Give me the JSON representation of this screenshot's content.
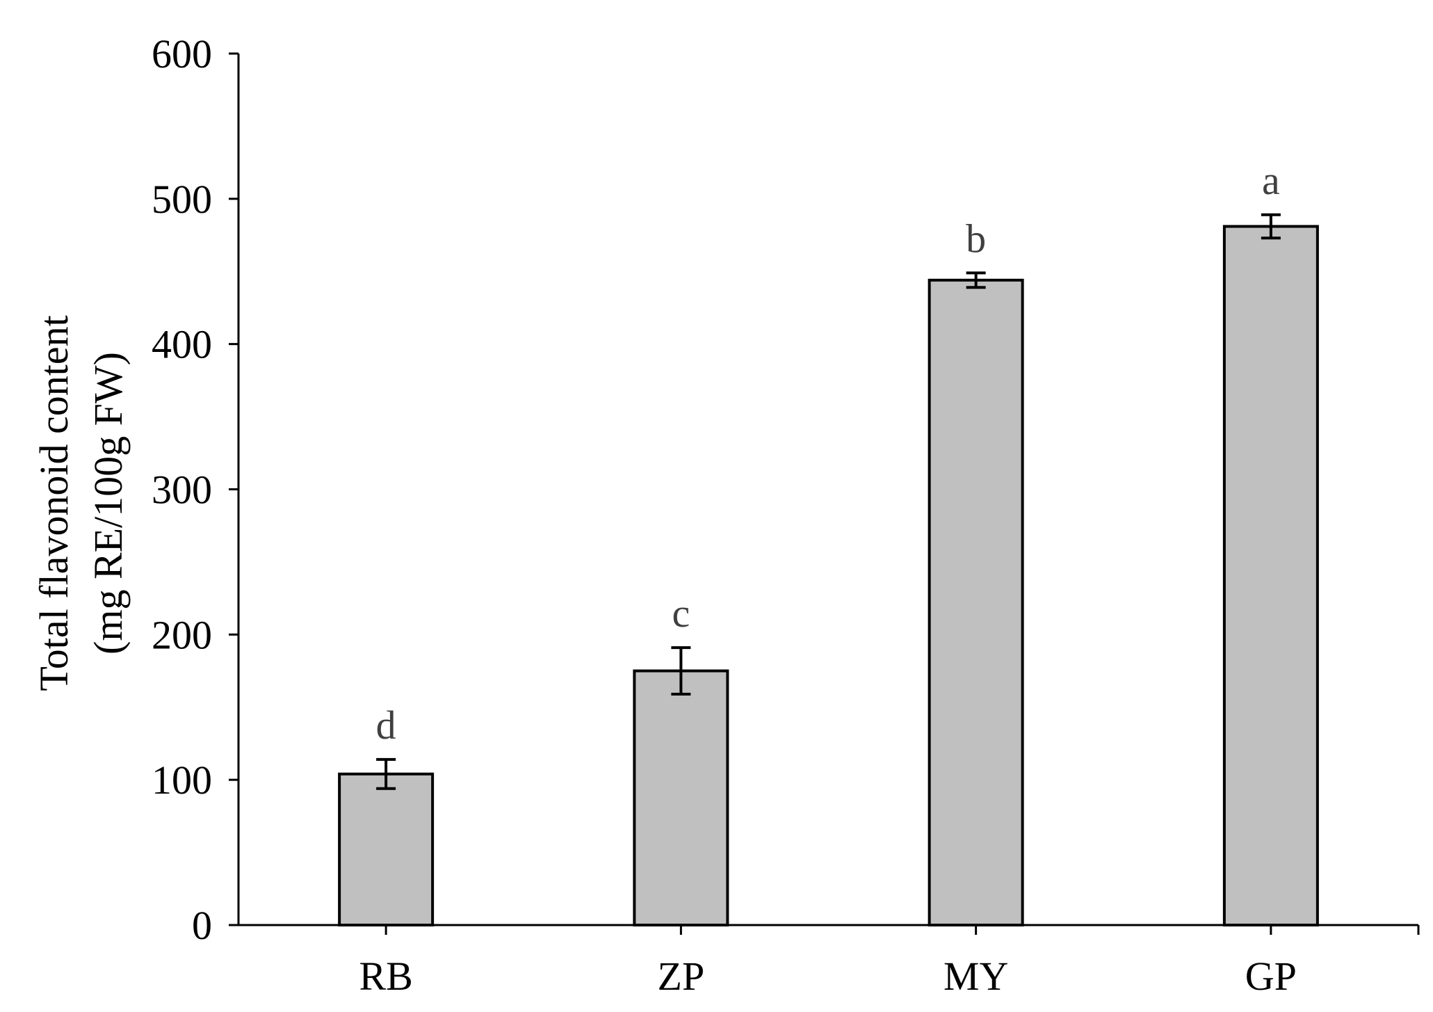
{
  "chart_data": {
    "type": "bar",
    "categories": [
      "RB",
      "ZP",
      "MY",
      "GP"
    ],
    "values": [
      104,
      175,
      444,
      481
    ],
    "errors": [
      10,
      16,
      5,
      8
    ],
    "significance_labels": [
      "d",
      "c",
      "b",
      "a"
    ],
    "ylabel_lines": [
      "Total flavonoid content",
      "(mg RE/100g FW)"
    ],
    "xlabel": "",
    "ylim": [
      0,
      600
    ],
    "yticks": [
      0,
      100,
      200,
      300,
      400,
      500,
      600
    ],
    "grid": false,
    "legend": "none",
    "colors": {
      "bar_fill": "#c0c0c0",
      "bar_edge": "#000000",
      "sig_text": "#404040"
    }
  }
}
